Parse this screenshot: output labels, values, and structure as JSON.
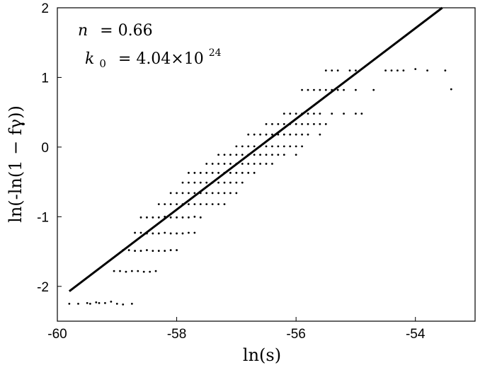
{
  "chart_data": {
    "type": "scatter",
    "title": "",
    "xlabel": "ln(s)",
    "ylabel": "ln(-ln(1 − fγ))",
    "xlim": [
      -60,
      -53
    ],
    "ylim": [
      -2.5,
      2
    ],
    "xticks": [
      -60,
      -58,
      -56,
      -54
    ],
    "yticks": [
      -2,
      -1,
      0,
      1,
      2
    ],
    "grid": false,
    "annotations": {
      "n_label": "n = 0.66",
      "k_label": "k0 = 4.04×10^24",
      "n_symbol": "n",
      "n_value": "= 0.66",
      "k_symbol": "k",
      "k_subscript": "0",
      "k_value": "= 4.04×10",
      "k_exponent": "24"
    },
    "fit_line": {
      "x": [
        -59.8,
        -53.55
      ],
      "y": [
        -2.07,
        2.0
      ]
    },
    "series": [
      {
        "x": [
          -59.8,
          -59.65,
          -59.5,
          -59.45,
          -59.35,
          -59.3,
          -59.2,
          -59.1,
          -59.0,
          -58.9,
          -58.75,
          -59.05,
          -58.95,
          -58.85,
          -58.75,
          -58.65,
          -58.55,
          -58.45,
          -58.35,
          -58.9,
          -58.8,
          -58.7,
          -58.6,
          -58.5,
          -58.4,
          -58.3,
          -58.2,
          -58.1,
          -58.0,
          -58.7,
          -58.6,
          -58.5,
          -58.4,
          -58.3,
          -58.2,
          -58.1,
          -58.0,
          -57.9,
          -57.8,
          -57.7,
          -58.6,
          -58.5,
          -58.4,
          -58.3,
          -58.2,
          -58.1,
          -58.0,
          -57.9,
          -57.8,
          -57.7,
          -57.6,
          -58.3,
          -58.2,
          -58.1,
          -58.0,
          -57.9,
          -57.8,
          -57.7,
          -57.6,
          -57.5,
          -57.4,
          -57.3,
          -57.2,
          -58.1,
          -58.0,
          -57.9,
          -57.8,
          -57.7,
          -57.6,
          -57.5,
          -57.4,
          -57.3,
          -57.2,
          -57.1,
          -57.0,
          -57.9,
          -57.8,
          -57.7,
          -57.6,
          -57.5,
          -57.4,
          -57.3,
          -57.2,
          -57.1,
          -57.0,
          -56.9,
          -57.8,
          -57.7,
          -57.6,
          -57.5,
          -57.4,
          -57.3,
          -57.2,
          -57.1,
          -57.0,
          -56.9,
          -56.8,
          -56.7,
          -57.5,
          -57.4,
          -57.3,
          -57.2,
          -57.1,
          -57.0,
          -56.9,
          -56.8,
          -56.7,
          -56.6,
          -56.5,
          -56.4,
          -57.3,
          -57.2,
          -57.1,
          -57.0,
          -56.9,
          -56.8,
          -56.7,
          -56.6,
          -56.5,
          -56.4,
          -56.3,
          -56.2,
          -56.0,
          -57.0,
          -56.9,
          -56.8,
          -56.7,
          -56.6,
          -56.5,
          -56.4,
          -56.3,
          -56.2,
          -56.1,
          -56.0,
          -55.9,
          -56.8,
          -56.7,
          -56.6,
          -56.5,
          -56.4,
          -56.3,
          -56.2,
          -56.1,
          -56.0,
          -55.9,
          -55.8,
          -55.6,
          -56.5,
          -56.4,
          -56.3,
          -56.2,
          -56.1,
          -56.0,
          -55.9,
          -55.8,
          -55.7,
          -55.6,
          -55.5,
          -56.2,
          -56.1,
          -56.0,
          -55.9,
          -55.8,
          -55.7,
          -55.6,
          -55.4,
          -55.2,
          -55.0,
          -54.9,
          -55.9,
          -55.8,
          -55.7,
          -55.6,
          -55.5,
          -55.4,
          -55.3,
          -55.2,
          -55.0,
          -54.7,
          -55.5,
          -55.4,
          -55.3,
          -55.1,
          -55.0,
          -54.5,
          -54.4,
          -54.3,
          -54.2,
          -54.0,
          -53.8,
          -53.5,
          -53.4
        ],
        "y": [
          -2.25,
          -2.25,
          -2.24,
          -2.25,
          -2.23,
          -2.24,
          -2.24,
          -2.22,
          -2.25,
          -2.26,
          -2.25,
          -1.78,
          -1.78,
          -1.79,
          -1.78,
          -1.78,
          -1.79,
          -1.79,
          -1.78,
          -1.48,
          -1.48,
          -1.49,
          -1.49,
          -1.48,
          -1.49,
          -1.49,
          -1.49,
          -1.48,
          -1.48,
          -1.23,
          -1.23,
          -1.24,
          -1.24,
          -1.24,
          -1.23,
          -1.24,
          -1.24,
          -1.24,
          -1.23,
          -1.23,
          -1.01,
          -1.01,
          -1.01,
          -1.01,
          -1.0,
          -1.01,
          -1.01,
          -1.01,
          -1.01,
          -1.0,
          -1.01,
          -0.82,
          -0.82,
          -0.82,
          -0.82,
          -0.82,
          -0.82,
          -0.82,
          -0.82,
          -0.82,
          -0.82,
          -0.82,
          -0.82,
          -0.66,
          -0.66,
          -0.66,
          -0.66,
          -0.66,
          -0.66,
          -0.66,
          -0.66,
          -0.66,
          -0.66,
          -0.66,
          -0.66,
          -0.51,
          -0.51,
          -0.51,
          -0.51,
          -0.51,
          -0.51,
          -0.51,
          -0.51,
          -0.51,
          -0.51,
          -0.51,
          -0.37,
          -0.37,
          -0.37,
          -0.37,
          -0.37,
          -0.37,
          -0.37,
          -0.37,
          -0.37,
          -0.37,
          -0.37,
          -0.37,
          -0.24,
          -0.24,
          -0.24,
          -0.24,
          -0.24,
          -0.24,
          -0.24,
          -0.24,
          -0.24,
          -0.24,
          -0.24,
          -0.24,
          -0.11,
          -0.11,
          -0.11,
          -0.11,
          -0.11,
          -0.11,
          -0.11,
          -0.11,
          -0.11,
          -0.11,
          -0.11,
          -0.11,
          -0.11,
          0.01,
          0.01,
          0.01,
          0.01,
          0.01,
          0.01,
          0.01,
          0.01,
          0.01,
          0.01,
          0.01,
          0.01,
          0.18,
          0.18,
          0.18,
          0.18,
          0.18,
          0.18,
          0.18,
          0.18,
          0.18,
          0.18,
          0.18,
          0.18,
          0.33,
          0.33,
          0.33,
          0.33,
          0.33,
          0.33,
          0.33,
          0.33,
          0.33,
          0.33,
          0.33,
          0.48,
          0.48,
          0.48,
          0.48,
          0.48,
          0.48,
          0.48,
          0.48,
          0.48,
          0.48,
          0.48,
          0.82,
          0.82,
          0.82,
          0.82,
          0.82,
          0.82,
          0.82,
          0.82,
          0.82,
          0.82,
          1.1,
          1.1,
          1.1,
          1.1,
          1.1,
          1.1,
          1.1,
          1.1,
          1.1,
          1.12,
          1.1,
          1.1,
          0.83
        ]
      }
    ]
  }
}
